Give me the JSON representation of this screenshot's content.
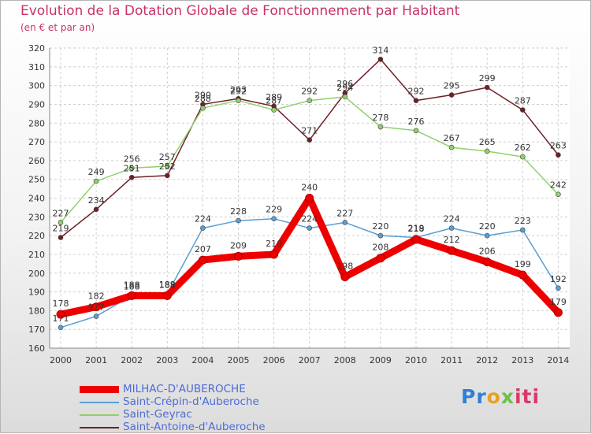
{
  "header": {
    "title": "Evolution de la Dotation Globale de Fonctionnement par Habitant",
    "subtitle": "(en € et par an)"
  },
  "logo": {
    "part1": "Pr",
    "part2": "o",
    "part3": "x",
    "part4": "iti"
  },
  "chart_data": {
    "type": "line",
    "title": "Evolution de la Dotation Globale de Fonctionnement par Habitant",
    "subtitle": "(en € et par an)",
    "xlabel": "",
    "ylabel": "",
    "ylim": [
      160,
      320
    ],
    "ytick_step": 10,
    "grid": true,
    "legend_position": "bottom-left",
    "categories": [
      "2000",
      "2001",
      "2002",
      "2003",
      "2004",
      "2005",
      "2006",
      "2007",
      "2008",
      "2009",
      "2010",
      "2011",
      "2012",
      "2013",
      "2014"
    ],
    "series": [
      {
        "name": "MILHAC-D'AUBEROCHE",
        "color": "#ee0000",
        "values": [
          178,
          182,
          188,
          188,
          207,
          209,
          210,
          240,
          198,
          208,
          218,
          212,
          206,
          199,
          179
        ]
      },
      {
        "name": "Saint-Crépin-d'Auberoche",
        "color": "#5a9fd4",
        "values": [
          171,
          177,
          188,
          189,
          224,
          228,
          229,
          224,
          227,
          220,
          219,
          224,
          220,
          223,
          192
        ]
      },
      {
        "name": "Saint-Geyrac",
        "color": "#8fd16b",
        "values": [
          227,
          249,
          256,
          257,
          288,
          292,
          287,
          292,
          294,
          278,
          276,
          267,
          265,
          262,
          242
        ]
      },
      {
        "name": "Saint-Antoine-d'Auberoche",
        "color": "#6e1f26",
        "values": [
          219,
          234,
          251,
          252,
          290,
          293,
          289,
          271,
          296,
          314,
          292,
          295,
          299,
          287,
          263
        ]
      }
    ]
  }
}
